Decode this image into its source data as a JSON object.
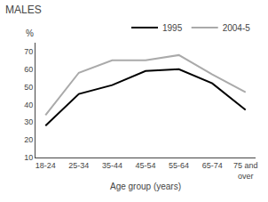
{
  "chart_data": {
    "type": "line",
    "title": "MALES",
    "xlabel": "Age group (years)",
    "ylabel": "%",
    "categories": [
      "18-24",
      "25-34",
      "35-44",
      "45-54",
      "55-64",
      "65-74",
      "75 and\nover"
    ],
    "series": [
      {
        "name": "1995",
        "color": "#000000",
        "line_style": "solid",
        "values": [
          28,
          46,
          51,
          59,
          60,
          52,
          37
        ]
      },
      {
        "name": "2004-5",
        "color": "#aaaaaa",
        "line_style": "solid",
        "values": [
          34,
          58,
          65,
          65,
          68,
          57,
          47
        ]
      }
    ],
    "ylim": [
      10,
      75
    ],
    "yticks": [
      10,
      20,
      30,
      40,
      50,
      60,
      70
    ],
    "legend": "upper right",
    "grid": false
  }
}
